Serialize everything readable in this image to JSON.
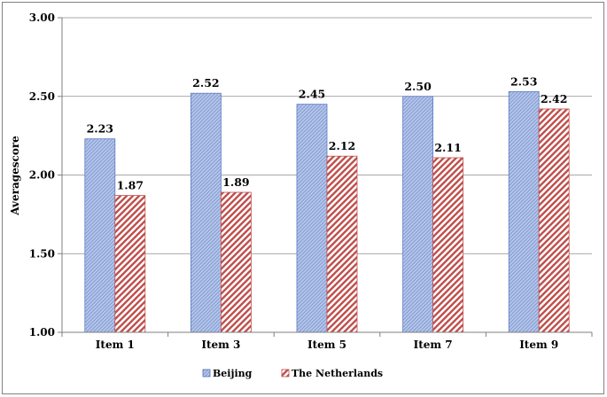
{
  "chart_data": {
    "type": "bar",
    "title": "",
    "xlabel": "",
    "ylabel": "Averagescore",
    "ylim": [
      1.0,
      3.0
    ],
    "yticks": [
      "1.00",
      "1.50",
      "2.00",
      "2.50",
      "3.00"
    ],
    "ytick_values": [
      1.0,
      1.5,
      2.0,
      2.5,
      3.0
    ],
    "categories": [
      "Item 1",
      "Item 3",
      "Item 5",
      "Item 7",
      "Item 9"
    ],
    "series": [
      {
        "name": "Beijing",
        "values": [
          2.23,
          2.52,
          2.45,
          2.5,
          2.53
        ],
        "labels": [
          "2.23",
          "2.52",
          "2.45",
          "2.50",
          "2.53"
        ],
        "color": "#9db3e0"
      },
      {
        "name": "The Netherlands",
        "values": [
          1.87,
          1.89,
          2.12,
          2.11,
          2.42
        ],
        "labels": [
          "1.87",
          "1.89",
          "2.12",
          "2.11",
          "2.42"
        ],
        "color": "#c0504d"
      }
    ],
    "grid": true,
    "legend_position": "bottom"
  }
}
